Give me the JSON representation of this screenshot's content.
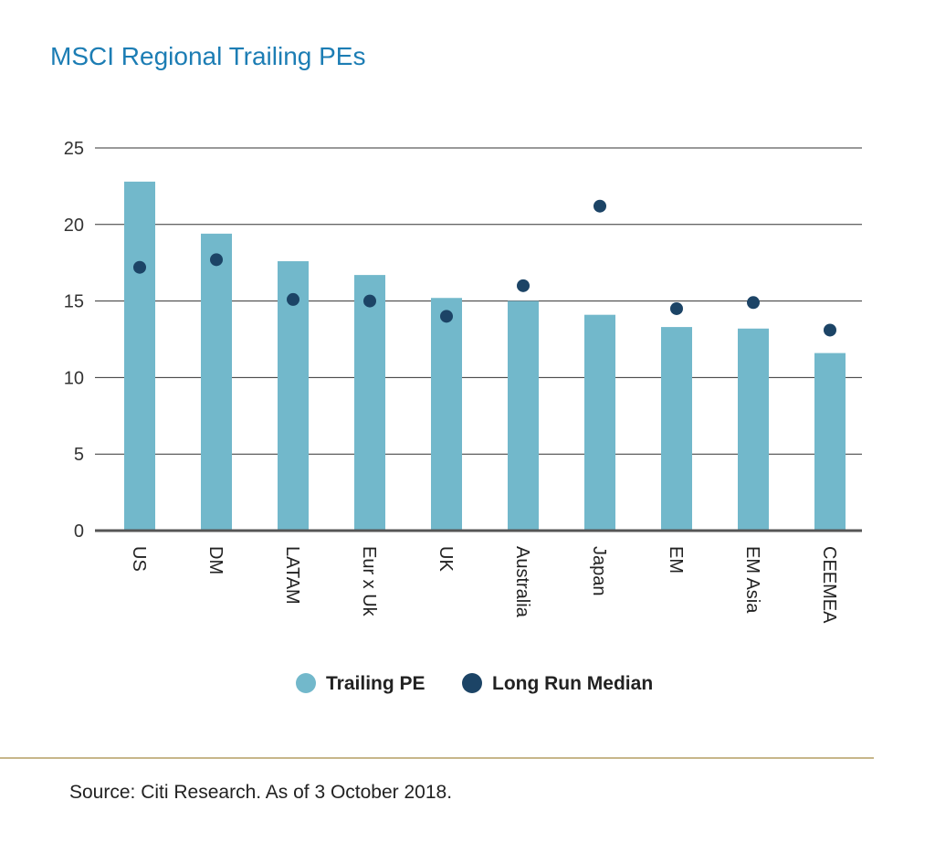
{
  "title": "MSCI Regional Trailing PEs",
  "source": "Source: Citi Research. As of 3 October 2018.",
  "colors": {
    "bar": "#72b8cb",
    "dot": "#1c4466",
    "title": "#1c7db4",
    "rule": "#c7b68a"
  },
  "chart_data": {
    "type": "bar",
    "categories": [
      "US",
      "DM",
      "LATAM",
      "Eur x Uk",
      "UK",
      "Australia",
      "Japan",
      "EM",
      "EM Asia",
      "CEEMEA"
    ],
    "series": [
      {
        "name": "Trailing PE",
        "type": "bar",
        "values": [
          22.8,
          19.4,
          17.6,
          16.7,
          15.2,
          15.0,
          14.1,
          13.3,
          13.2,
          11.6
        ]
      },
      {
        "name": "Long Run Median",
        "type": "scatter",
        "values": [
          17.2,
          17.7,
          15.1,
          15.0,
          14.0,
          16.0,
          21.2,
          14.5,
          14.9,
          13.1
        ]
      }
    ],
    "ylim": [
      0,
      25
    ],
    "yticks": [
      "0",
      "5",
      "10",
      "15",
      "20",
      "25"
    ],
    "xlabel": "",
    "ylabel": "",
    "grid": true,
    "legend": "bottom"
  }
}
